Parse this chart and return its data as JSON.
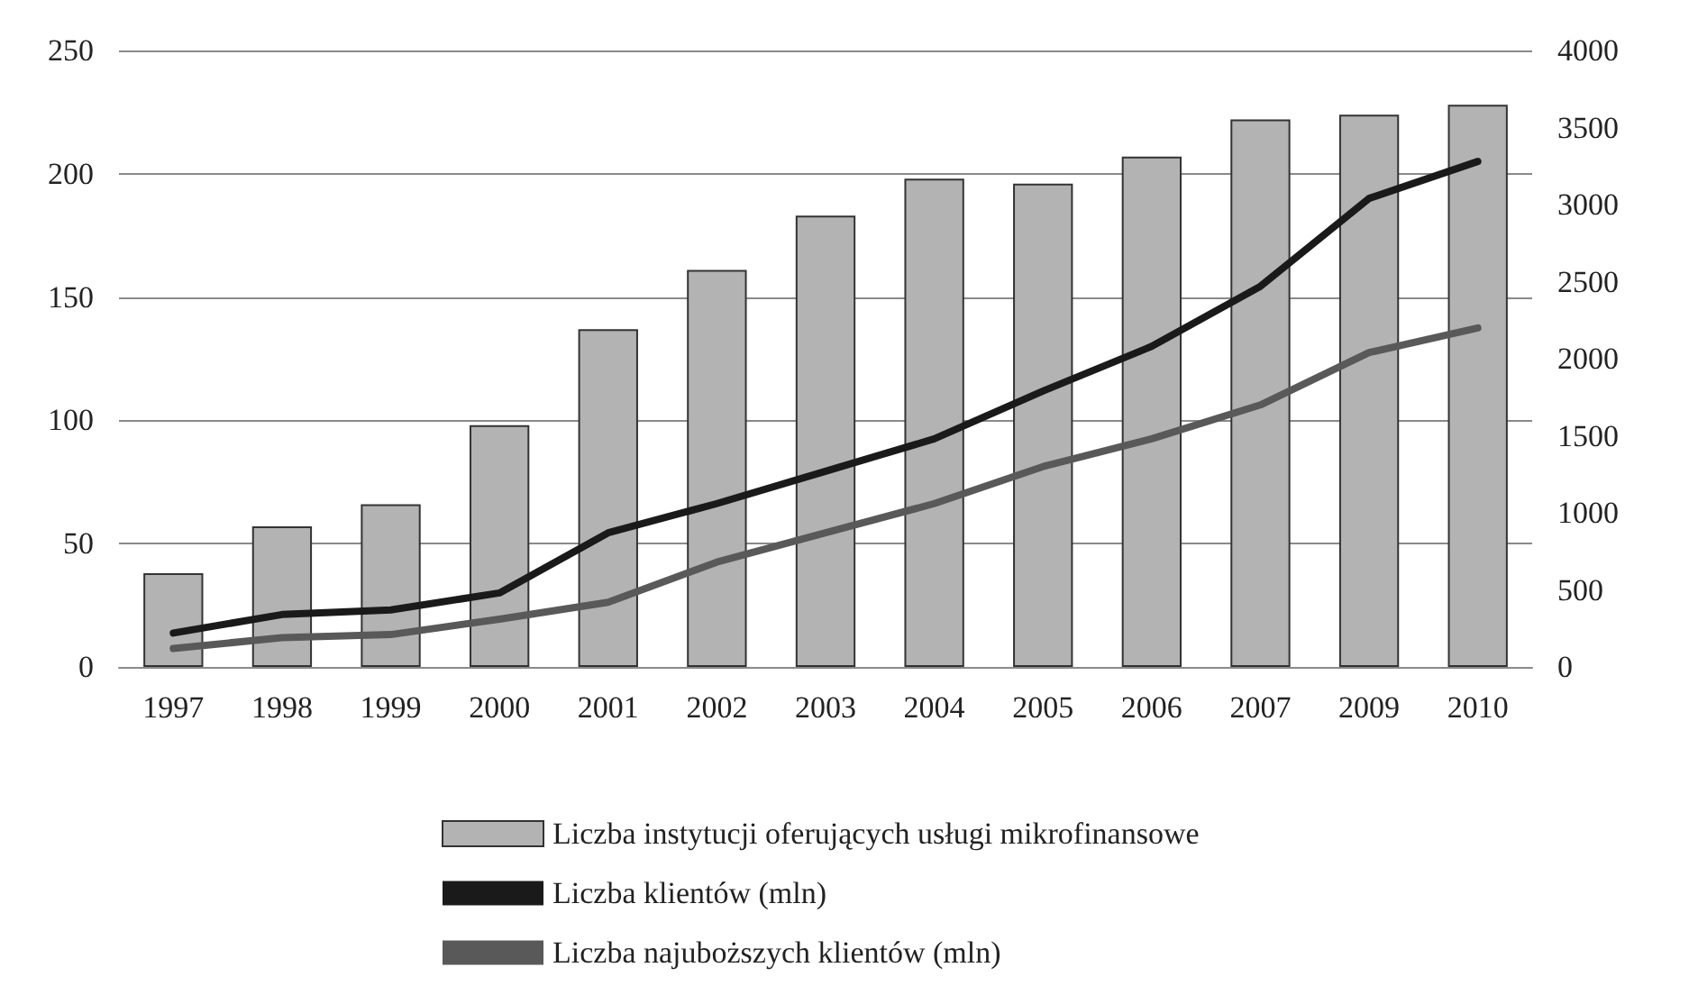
{
  "chart_data": {
    "type": "bar",
    "categories": [
      "1997",
      "1998",
      "1999",
      "2000",
      "2001",
      "2002",
      "2003",
      "2004",
      "2005",
      "2006",
      "2007",
      "2009",
      "2010"
    ],
    "series": [
      {
        "name": "Liczba instytucji oferujących usługi mikrofinansowe",
        "color": "#b3b3b3",
        "values": [
          38,
          57,
          66,
          98,
          137,
          161,
          183,
          198,
          196,
          207,
          222,
          224,
          228
        ]
      },
      {
        "name": "Liczba klientów (mln)",
        "type": "line",
        "axis": "y2",
        "color": "#1a1a1a",
        "values": [
          220,
          340,
          370,
          480,
          870,
          1060,
          1270,
          1480,
          1790,
          2080,
          2470,
          3040,
          3280
        ]
      },
      {
        "name": "Liczba najuboższych klientów (mln)",
        "type": "line",
        "axis": "y2",
        "color": "#595959",
        "values": [
          120,
          190,
          210,
          310,
          420,
          680,
          870,
          1060,
          1300,
          1480,
          1700,
          2040,
          2200
        ]
      }
    ],
    "ylim": [
      0,
      250
    ],
    "yticks": [
      0,
      50,
      100,
      150,
      200,
      250
    ],
    "y2lim": [
      0,
      4000
    ],
    "y2ticks": [
      0,
      500,
      1000,
      1500,
      2000,
      2500,
      3000,
      3500,
      4000
    ],
    "grid": "y",
    "legend": "bottom",
    "marker": "none",
    "line_style": "solid"
  }
}
